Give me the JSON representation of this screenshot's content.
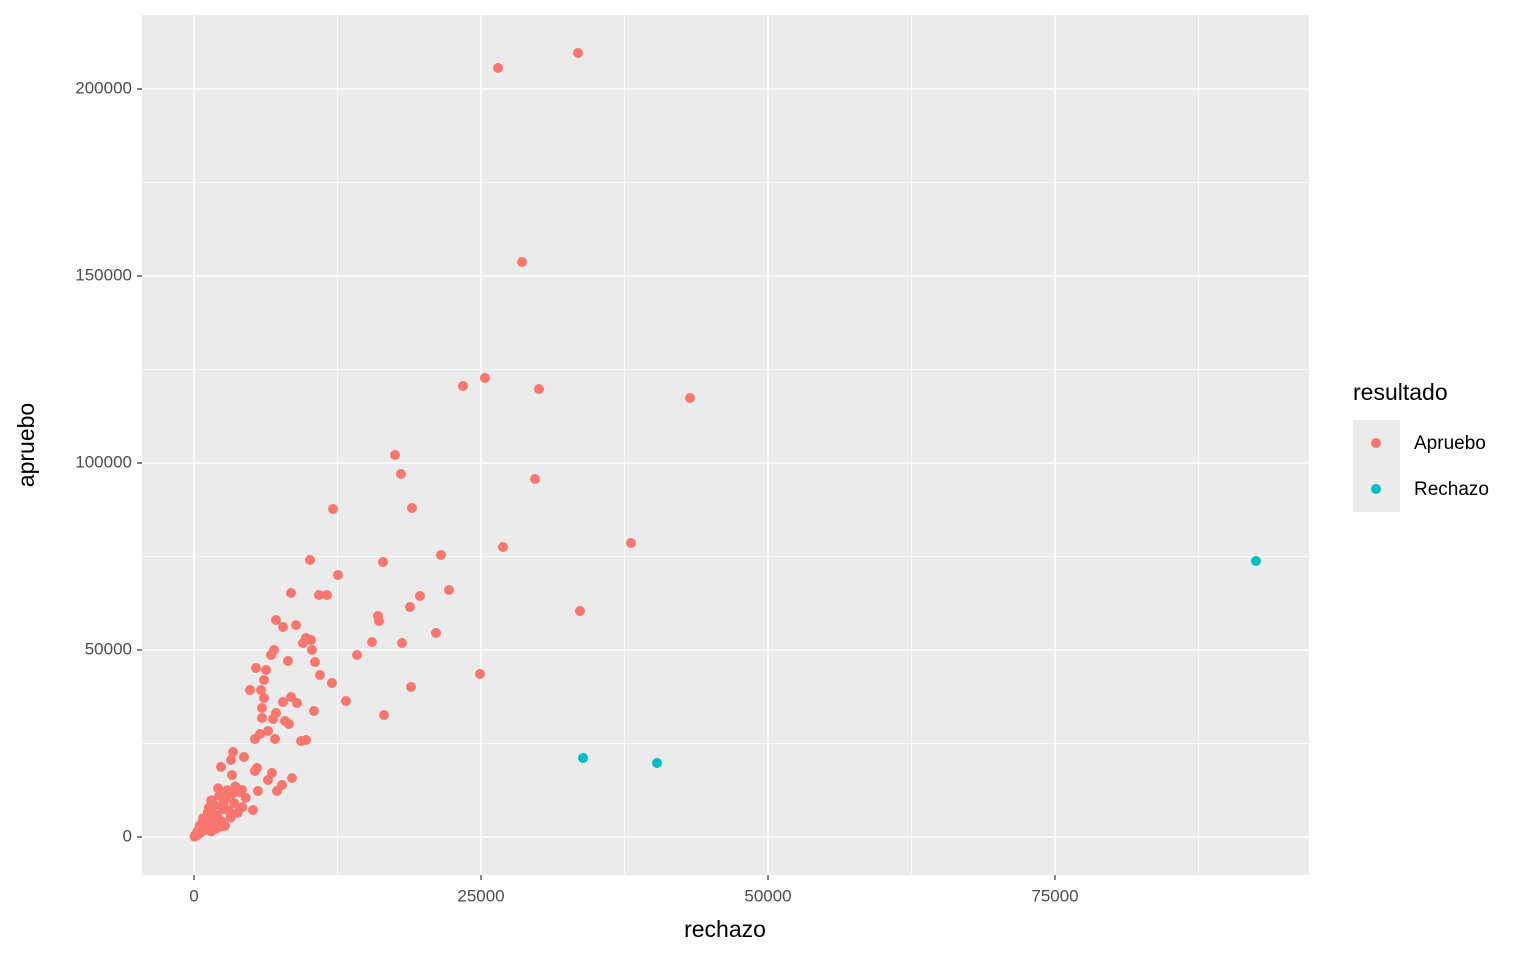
{
  "chart_data": {
    "type": "scatter",
    "x_label": "rechazo",
    "y_label": "apruebo",
    "legend_title": "resultado",
    "xlim": [
      -4530,
      97125
    ],
    "ylim": [
      -10160,
      219786
    ],
    "xticks": [
      0,
      25000,
      50000,
      75000
    ],
    "yticks": [
      0,
      50000,
      100000,
      150000,
      200000
    ],
    "grid": true,
    "legend": "right",
    "series": [
      {
        "name": "Apruebo",
        "color": "#F8766D",
        "x": [
          26481,
          33450,
          28571,
          23432,
          25348,
          30052,
          43206,
          17509,
          18031,
          29704,
          12108,
          18990,
          21516,
          26916,
          38066,
          10105,
          16463,
          12544,
          8449,
          22213,
          10889,
          11585,
          19686,
          18815,
          33624,
          16028,
          16115,
          7143,
          7753,
          8885,
          21080,
          9756,
          10192,
          9495,
          15505,
          18118,
          10279,
          6969,
          6707,
          14199,
          8188,
          10540,
          5401,
          6272,
          24913,
          10976,
          12021,
          6098,
          4878,
          5836,
          18902,
          8449,
          6098,
          13240,
          8972,
          7753,
          5923,
          10453,
          7143,
          16551,
          5923,
          6882,
          7927,
          8275,
          6446,
          5749,
          5314,
          7056,
          9756,
          9321,
          3397,
          3223,
          4355,
          5314,
          5488,
          6794,
          2352,
          8537,
          6446,
          7666,
          7230,
          5575,
          3310,
          4181,
          5139,
          1500,
          2200,
          1800,
          2800,
          3500,
          2500,
          1200,
          3000,
          800,
          1600,
          2000,
          3800,
          4200,
          500,
          1000,
          300,
          100,
          600,
          1400,
          2400,
          3200,
          2700,
          1900,
          900,
          200,
          50,
          400,
          1100,
          1700,
          2600,
          3300,
          4500,
          2100,
          2900,
          3600,
          1300,
          700,
          4000,
          2300,
          1500
        ],
        "values": [
          205615,
          209626,
          153743,
          120588,
          122727,
          119786,
          117380,
          102139,
          97059,
          95722,
          87701,
          87968,
          75401,
          77540,
          78610,
          74064,
          73529,
          70053,
          65241,
          66043,
          64706,
          64706,
          64439,
          61497,
          60428,
          59091,
          57754,
          58021,
          56150,
          56684,
          54545,
          53209,
          52674,
          51872,
          52139,
          51872,
          50000,
          50000,
          48663,
          48663,
          47059,
          46791,
          45187,
          44652,
          43583,
          43316,
          41176,
          41979,
          39305,
          39305,
          40107,
          37433,
          37166,
          36364,
          35829,
          36096,
          34492,
          33690,
          33155,
          32620,
          31818,
          31551,
          31016,
          30214,
          28342,
          27540,
          26203,
          26203,
          25936,
          25668,
          22727,
          20588,
          21390,
          17647,
          18449,
          17112,
          18717,
          15775,
          15241,
          13904,
          12299,
          12299,
          16578,
          12567,
          7219,
          9800,
          11000,
          8500,
          10500,
          9000,
          7500,
          6500,
          7000,
          5000,
          4500,
          5800,
          6500,
          8000,
          3000,
          2500,
          1500,
          500,
          1200,
          3500,
          4200,
          5200,
          3000,
          2200,
          1800,
          300,
          100,
          800,
          4000,
          6000,
          9000,
          11500,
          10500,
          13000,
          12500,
          13500,
          7800,
          3800,
          12000,
          2800,
          1500
        ]
      },
      {
        "name": "Rechazo",
        "color": "#00BFC4",
        "x": [
          33885,
          40331,
          92509
        ],
        "values": [
          21123,
          19786,
          73797
        ]
      }
    ]
  }
}
